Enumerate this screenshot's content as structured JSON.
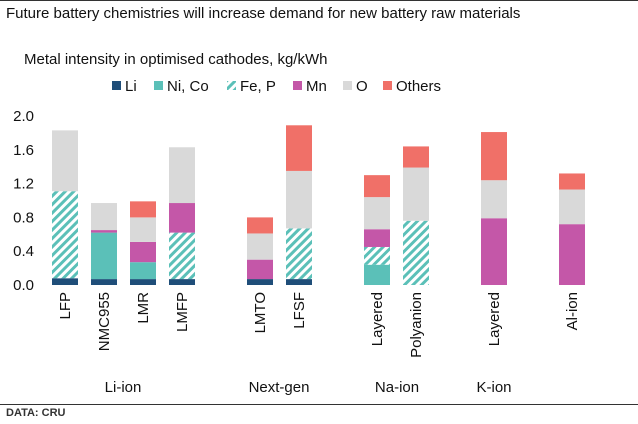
{
  "header": {
    "title": "Future battery chemistries will increase demand for new battery raw materials"
  },
  "footer": {
    "source": "DATA: CRU"
  },
  "colors": {
    "Li": "#1f4e79",
    "Ni, Co": "#5bc0b8",
    "Fe, P": "#5bc0b8",
    "Mn": "#c457a8",
    "O": "#d9d9d9",
    "Others": "#f07068"
  },
  "chart_data": {
    "type": "bar",
    "stacked": true,
    "title": "Metal intensity in optimised cathodes, kg/kWh",
    "ylim": [
      0,
      2.0
    ],
    "yticks": [
      "0.0",
      "0.4",
      "0.8",
      "1.2",
      "1.6",
      "2.0"
    ],
    "legend": [
      "Li",
      "Ni, Co",
      "Fe, P",
      "Mn",
      "O",
      "Others"
    ],
    "categories": [
      "LFP",
      "NMC955",
      "LMR",
      "LMFP",
      "LMTO",
      "LFSF",
      "Layered",
      "Polyanion",
      "Layered",
      "Al-ion"
    ],
    "groups": [
      {
        "label": "Li-ion",
        "categories": [
          "LFP",
          "NMC955",
          "LMR",
          "LMFP"
        ]
      },
      {
        "label": "Next-gen",
        "categories": [
          "LMTO",
          "LFSF"
        ]
      },
      {
        "label": "Na-ion",
        "categories": [
          "Layered",
          "Polyanion"
        ]
      },
      {
        "label": "K-ion",
        "categories": [
          "Layered"
        ]
      },
      {
        "label": "",
        "categories": [
          "Al-ion"
        ]
      }
    ],
    "series": [
      {
        "name": "Li",
        "values": [
          0.08,
          0.07,
          0.07,
          0.07,
          0.07,
          0.07,
          0.0,
          0.0,
          0.0,
          0.0
        ]
      },
      {
        "name": "Ni, Co",
        "values": [
          0.0,
          0.55,
          0.2,
          0.0,
          0.0,
          0.0,
          0.24,
          0.0,
          0.0,
          0.0
        ]
      },
      {
        "name": "Fe, P",
        "values": [
          1.03,
          0.0,
          0.0,
          0.55,
          0.0,
          0.6,
          0.21,
          0.76,
          0.0,
          0.0
        ]
      },
      {
        "name": "Mn",
        "values": [
          0.0,
          0.03,
          0.24,
          0.35,
          0.23,
          0.0,
          0.21,
          0.0,
          0.79,
          0.72
        ]
      },
      {
        "name": "O",
        "values": [
          0.72,
          0.32,
          0.29,
          0.66,
          0.31,
          0.68,
          0.38,
          0.63,
          0.45,
          0.41
        ]
      },
      {
        "name": "Others",
        "values": [
          0.0,
          0.0,
          0.19,
          0.0,
          0.19,
          0.54,
          0.26,
          0.25,
          0.57,
          0.19
        ]
      }
    ]
  }
}
